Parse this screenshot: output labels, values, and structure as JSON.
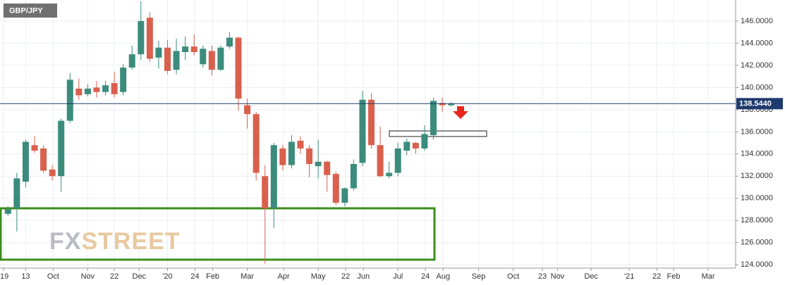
{
  "chart_data": {
    "type": "candlestick",
    "title": "GBP/JPY",
    "watermark": [
      "FX",
      "STREET"
    ],
    "categories": [
      null,
      null,
      null,
      null,
      null,
      null,
      null,
      null,
      null,
      null,
      null,
      null,
      null,
      null,
      null,
      null,
      null,
      null,
      null,
      null,
      null,
      null,
      null,
      null,
      null,
      null,
      null,
      null,
      null,
      null,
      null,
      null,
      null,
      null,
      null,
      null,
      null,
      null,
      null,
      null,
      null,
      null,
      null,
      null,
      null,
      null,
      null,
      null,
      null,
      null,
      null
    ],
    "open": [
      128.6,
      129.1,
      131.5,
      134.8,
      134.5,
      132.6,
      132.0,
      137.0,
      139.9,
      139.4,
      140.0,
      139.6,
      140.4,
      139.6,
      141.8,
      143.0,
      146.3,
      142.7,
      143.6,
      141.6,
      143.2,
      143.7,
      142.1,
      143.3,
      141.6,
      143.7,
      144.5,
      138.4,
      137.6,
      132.0,
      129.1,
      134.5,
      133.0,
      135.2,
      134.5,
      132.9,
      133.3,
      132.2,
      129.6,
      130.9,
      133.2,
      138.9,
      134.8,
      132.0,
      132.3,
      134.3,
      135.0,
      134.5,
      135.7,
      138.6,
      138.4
    ],
    "high": [
      129.3,
      132.3,
      135.3,
      135.6,
      134.8,
      133.0,
      137.2,
      141.3,
      140.8,
      140.3,
      140.6,
      140.6,
      141.4,
      142.1,
      143.8,
      147.8,
      146.8,
      144.2,
      144.3,
      144.4,
      144.6,
      144.8,
      143.8,
      143.8,
      143.8,
      145.0,
      144.6,
      139.0,
      137.8,
      133.0,
      135.0,
      134.8,
      135.7,
      135.6,
      134.8,
      135.3,
      133.4,
      132.4,
      131.0,
      133.5,
      139.7,
      139.5,
      136.5,
      133.3,
      135.0,
      135.4,
      135.1,
      136.6,
      139.1,
      139.1,
      138.7
    ],
    "low": [
      128.4,
      127.0,
      131.0,
      134.1,
      132.3,
      131.6,
      130.6,
      136.8,
      138.9,
      139.2,
      139.1,
      139.3,
      139.1,
      139.3,
      141.6,
      142.5,
      142.3,
      141.7,
      141.2,
      141.2,
      142.5,
      142.9,
      141.8,
      141.1,
      141.5,
      143.5,
      137.9,
      136.3,
      131.6,
      124.1,
      127.3,
      132.5,
      132.7,
      134.0,
      131.9,
      131.8,
      130.6,
      129.4,
      129.3,
      130.7,
      132.9,
      134.5,
      131.9,
      131.8,
      132.0,
      133.9,
      134.0,
      134.3,
      135.3,
      137.8,
      138.3
    ],
    "close": [
      129.0,
      131.8,
      135.1,
      134.3,
      132.5,
      132.0,
      137.0,
      140.7,
      139.3,
      139.9,
      139.6,
      140.2,
      139.4,
      141.8,
      143.0,
      146.0,
      142.6,
      143.6,
      141.5,
      143.3,
      143.7,
      143.2,
      143.5,
      141.6,
      143.6,
      144.5,
      139.0,
      137.6,
      132.3,
      129.1,
      134.8,
      133.0,
      135.1,
      134.5,
      133.1,
      133.3,
      132.1,
      129.6,
      130.9,
      133.1,
      138.9,
      134.8,
      132.0,
      132.3,
      134.5,
      135.1,
      134.5,
      135.8,
      138.8,
      138.4,
      138.544
    ],
    "up_color": "#3b8c7c",
    "down_color": "#d9604c",
    "last_price": {
      "value": 138.544,
      "label": "138.5440"
    },
    "ylim": [
      123.7,
      147.9
    ],
    "yticks": [
      {
        "value": 124,
        "label": "124.0000"
      },
      {
        "value": 126,
        "label": "126.0000"
      },
      {
        "value": 128,
        "label": "128.0000"
      },
      {
        "value": 130,
        "label": "130.0000"
      },
      {
        "value": 132,
        "label": "132.0000"
      },
      {
        "value": 134,
        "label": "134.0000"
      },
      {
        "value": 136,
        "label": "136.0000"
      },
      {
        "value": 138,
        "label": "138.0000"
      },
      {
        "value": 140,
        "label": "140.0000"
      },
      {
        "value": 142,
        "label": "142.0000"
      },
      {
        "value": 144,
        "label": "144.0000"
      },
      {
        "value": 146,
        "label": "146.0000"
      }
    ],
    "xlim": [
      -0.9,
      82.1
    ],
    "xticks": [
      {
        "value": -0.5,
        "label": "'19"
      },
      {
        "value": 2.0,
        "label": "13"
      },
      {
        "value": 5.1,
        "label": "Oct"
      },
      {
        "value": 9.0,
        "label": "Nov"
      },
      {
        "value": 12.0,
        "label": "22"
      },
      {
        "value": 14.8,
        "label": "Dec"
      },
      {
        "value": 18.0,
        "label": "'20"
      },
      {
        "value": 21.1,
        "label": "24"
      },
      {
        "value": 23.1,
        "label": "Feb"
      },
      {
        "value": 27.0,
        "label": "Mar"
      },
      {
        "value": 31.1,
        "label": "Apr"
      },
      {
        "value": 35.0,
        "label": "May"
      },
      {
        "value": 38.1,
        "label": "22"
      },
      {
        "value": 40.1,
        "label": "Jun"
      },
      {
        "value": 44.0,
        "label": "Jul"
      },
      {
        "value": 47.1,
        "label": "24"
      },
      {
        "value": 49.1,
        "label": "Aug"
      },
      {
        "value": 53.1,
        "label": "Sep"
      },
      {
        "value": 57.0,
        "label": "Oct"
      },
      {
        "value": 60.3,
        "label": "23"
      },
      {
        "value": 62.0,
        "label": "Nov"
      },
      {
        "value": 65.8,
        "label": "Dec"
      },
      {
        "value": 70.1,
        "label": "'21"
      },
      {
        "value": 73.2,
        "label": "22"
      },
      {
        "value": 75.1,
        "label": "Feb"
      },
      {
        "value": 79.0,
        "label": "Mar"
      }
    ],
    "grid": true
  }
}
